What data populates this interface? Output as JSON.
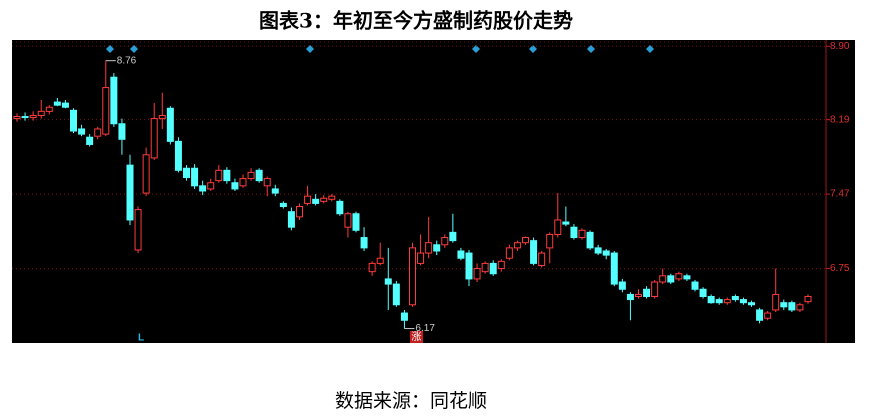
{
  "chart_data": {
    "type": "candlestick",
    "title": "图表3：年初至今方盛制药股价走势",
    "source": "数据来源：同花顺",
    "ylim": [
      6.04,
      8.96
    ],
    "yticks": [
      {
        "value": 6.75,
        "label": "6.75"
      },
      {
        "value": 7.47,
        "label": "7.47"
      },
      {
        "value": 8.19,
        "label": "8.19"
      },
      {
        "value": 8.9,
        "label": "8.90"
      }
    ],
    "grid": true,
    "up_color": "#ff3c3c",
    "down_color": "#54ffff",
    "annotations": [
      {
        "value": 8.76,
        "label": "8.76",
        "at": "high"
      },
      {
        "value": 6.17,
        "label": "6.17",
        "at": "low"
      }
    ],
    "labels": [
      "L",
      "涨"
    ],
    "open": [
      8.2,
      8.22,
      8.21,
      8.23,
      8.27,
      8.36,
      8.35,
      8.28,
      8.1,
      8.02,
      8.03,
      8.05,
      8.6,
      8.15,
      7.75,
      6.93,
      7.48,
      7.82,
      8.2,
      8.3,
      7.98,
      7.72,
      7.72,
      7.55,
      7.52,
      7.6,
      7.7,
      7.58,
      7.55,
      7.62,
      7.7,
      7.55,
      7.52,
      7.38,
      7.3,
      7.25,
      7.38,
      7.42,
      7.4,
      7.42,
      7.4,
      7.15,
      7.28,
      7.05,
      6.72,
      6.8,
      6.65,
      6.6,
      6.32,
      6.4,
      6.8,
      6.9,
      6.98,
      6.98,
      7.1,
      6.92,
      6.9,
      6.65,
      6.72,
      6.8,
      6.75,
      6.85,
      6.95,
      7.0,
      7.02,
      6.78,
      6.95,
      7.08,
      7.2,
      7.15,
      7.05,
      7.1,
      6.95,
      6.92,
      6.9,
      6.62,
      6.5,
      6.48,
      6.55,
      6.48,
      6.62,
      6.68,
      6.65,
      6.68,
      6.62,
      6.55,
      6.48,
      6.45,
      6.42,
      6.48,
      6.45,
      6.42,
      6.35,
      6.27,
      6.35,
      6.42,
      6.42,
      6.35,
      6.43
    ],
    "high": [
      8.25,
      8.26,
      8.27,
      8.38,
      8.33,
      8.4,
      8.38,
      8.3,
      8.14,
      8.05,
      8.12,
      8.76,
      8.64,
      8.2,
      7.85,
      7.35,
      7.92,
      8.35,
      8.45,
      8.32,
      8.02,
      7.75,
      7.76,
      7.6,
      7.62,
      7.75,
      7.73,
      7.62,
      7.66,
      7.72,
      7.72,
      7.64,
      7.56,
      7.4,
      7.34,
      7.38,
      7.55,
      7.47,
      7.46,
      7.47,
      7.42,
      7.3,
      7.3,
      7.15,
      6.82,
      7.0,
      6.95,
      6.63,
      6.35,
      7.0,
      7.08,
      7.25,
      7.02,
      7.08,
      7.28,
      6.95,
      6.93,
      6.8,
      6.82,
      6.83,
      6.84,
      6.98,
      7.02,
      7.06,
      7.05,
      6.92,
      7.1,
      7.48,
      7.35,
      7.18,
      7.14,
      7.12,
      6.98,
      6.94,
      6.92,
      6.65,
      6.52,
      6.55,
      6.58,
      6.64,
      6.75,
      6.7,
      6.72,
      6.7,
      6.64,
      6.57,
      6.5,
      6.47,
      6.47,
      6.5,
      6.47,
      6.44,
      6.37,
      6.34,
      6.75,
      6.45,
      6.44,
      6.42,
      6.5
    ],
    "low": [
      8.17,
      8.18,
      8.18,
      8.2,
      8.24,
      8.32,
      8.3,
      8.06,
      8.03,
      7.93,
      8.0,
      8.03,
      8.12,
      7.85,
      7.17,
      6.9,
      7.45,
      7.8,
      8.1,
      7.95,
      7.68,
      7.6,
      7.52,
      7.46,
      7.5,
      7.58,
      7.57,
      7.5,
      7.53,
      7.6,
      7.58,
      7.45,
      7.45,
      7.33,
      7.12,
      7.22,
      7.36,
      7.36,
      7.38,
      7.4,
      7.26,
      7.05,
      7.1,
      6.92,
      6.68,
      6.78,
      6.35,
      6.38,
      6.17,
      6.38,
      6.78,
      6.85,
      6.88,
      6.95,
      7.0,
      6.83,
      6.58,
      6.62,
      6.7,
      6.68,
      6.72,
      6.83,
      6.92,
      6.98,
      6.78,
      6.76,
      6.8,
      7.05,
      7.16,
      7.03,
      7.03,
      6.93,
      6.88,
      6.84,
      6.58,
      6.52,
      6.25,
      6.46,
      6.46,
      6.46,
      6.6,
      6.6,
      6.63,
      6.63,
      6.53,
      6.46,
      6.41,
      6.4,
      6.4,
      6.43,
      6.4,
      6.38,
      6.22,
      6.25,
      6.33,
      6.35,
      6.33,
      6.33,
      6.41
    ],
    "close": [
      8.22,
      8.21,
      8.23,
      8.27,
      8.31,
      8.33,
      8.31,
      8.08,
      8.05,
      7.95,
      8.1,
      8.5,
      8.15,
      8.0,
      7.22,
      7.32,
      7.85,
      8.2,
      8.23,
      7.98,
      7.7,
      7.63,
      7.55,
      7.5,
      7.58,
      7.7,
      7.6,
      7.52,
      7.62,
      7.68,
      7.6,
      7.62,
      7.48,
      7.35,
      7.15,
      7.35,
      7.45,
      7.38,
      7.43,
      7.45,
      7.28,
      7.28,
      7.12,
      6.95,
      6.8,
      6.85,
      6.6,
      6.4,
      6.25,
      6.95,
      6.9,
      7.0,
      6.92,
      7.05,
      7.02,
      6.85,
      6.65,
      6.75,
      6.8,
      6.7,
      6.82,
      6.95,
      7.0,
      7.05,
      6.8,
      6.9,
      7.08,
      7.22,
      7.18,
      7.05,
      7.12,
      6.95,
      6.9,
      6.88,
      6.6,
      6.55,
      6.45,
      6.5,
      6.48,
      6.62,
      6.68,
      6.62,
      6.7,
      6.65,
      6.55,
      6.48,
      6.42,
      6.42,
      6.45,
      6.45,
      6.42,
      6.4,
      6.25,
      6.32,
      6.5,
      6.38,
      6.35,
      6.4,
      6.48
    ]
  }
}
